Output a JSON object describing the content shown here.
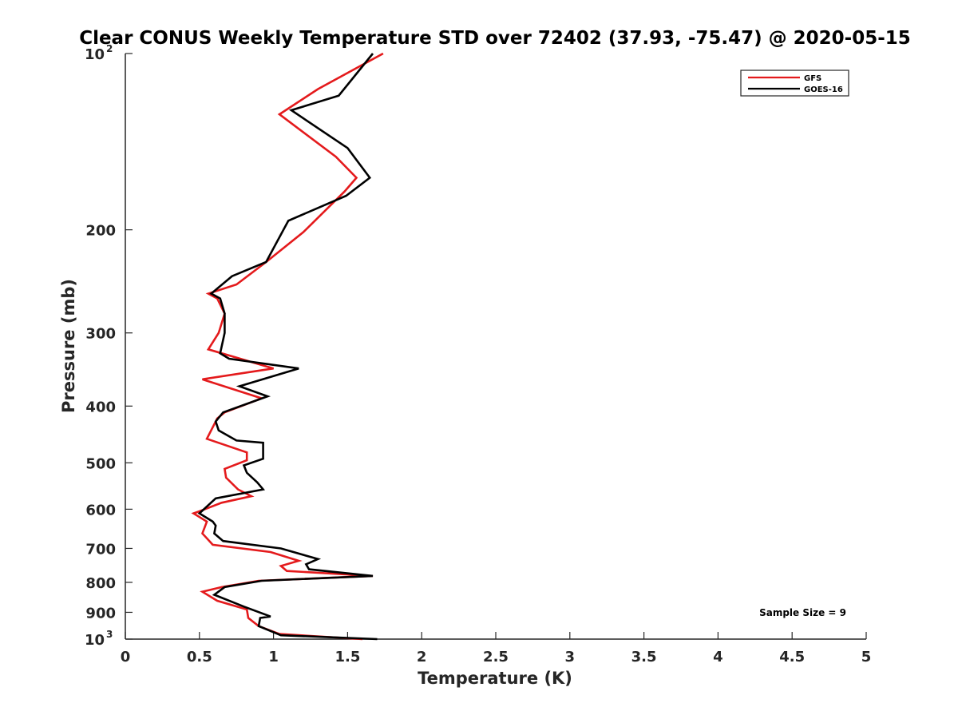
{
  "chart_data": {
    "type": "line",
    "title": "Clear CONUS Weekly Temperature STD over 72402 (37.93, -75.47) @ 2020-05-15",
    "xlabel": "Temperature (K)",
    "ylabel": "Pressure (mb)",
    "xlim": [
      0,
      5
    ],
    "ylim": [
      100,
      1000
    ],
    "yscale": "log",
    "y_reversed": true,
    "x_ticks": [
      {
        "value": 0,
        "label": "0"
      },
      {
        "value": 0.5,
        "label": "0.5"
      },
      {
        "value": 1,
        "label": "1"
      },
      {
        "value": 1.5,
        "label": "1.5"
      },
      {
        "value": 2,
        "label": "2"
      },
      {
        "value": 2.5,
        "label": "2.5"
      },
      {
        "value": 3,
        "label": "3"
      },
      {
        "value": 3.5,
        "label": "3.5"
      },
      {
        "value": 4,
        "label": "4"
      },
      {
        "value": 4.5,
        "label": "4.5"
      },
      {
        "value": 5,
        "label": "5"
      }
    ],
    "y_ticks": [
      {
        "value": 100,
        "base": "10",
        "exp": "2"
      },
      {
        "value": 200,
        "base": "200",
        "exp": ""
      },
      {
        "value": 300,
        "base": "300",
        "exp": ""
      },
      {
        "value": 400,
        "base": "400",
        "exp": ""
      },
      {
        "value": 500,
        "base": "500",
        "exp": ""
      },
      {
        "value": 600,
        "base": "600",
        "exp": ""
      },
      {
        "value": 700,
        "base": "700",
        "exp": ""
      },
      {
        "value": 800,
        "base": "800",
        "exp": ""
      },
      {
        "value": 900,
        "base": "900",
        "exp": ""
      },
      {
        "value": 1000,
        "base": "10",
        "exp": "3"
      }
    ],
    "grid": false,
    "legend_position": "top-right",
    "series": [
      {
        "name": "GFS",
        "color": "#e41a1c",
        "x": [
          1.74,
          1.3,
          1.04,
          1.42,
          1.56,
          1.48,
          1.2,
          0.95,
          0.75,
          0.56,
          0.62,
          0.67,
          0.63,
          0.56,
          1.0,
          0.52,
          0.92,
          0.67,
          0.62,
          0.55,
          0.82,
          0.82,
          0.67,
          0.68,
          0.76,
          0.85,
          0.65,
          0.5,
          0.46,
          0.55,
          0.52,
          0.59,
          0.98,
          1.17,
          1.05,
          1.09,
          1.67,
          0.9,
          0.65,
          0.52,
          0.62,
          0.82,
          0.83,
          0.9,
          1.04,
          1.6
        ],
        "y": [
          100,
          115,
          127,
          150,
          163,
          172,
          202,
          227,
          248,
          257,
          262,
          278,
          300,
          320,
          345,
          360,
          388,
          410,
          420,
          455,
          480,
          495,
          512,
          530,
          555,
          570,
          585,
          605,
          610,
          630,
          660,
          690,
          710,
          735,
          750,
          765,
          780,
          795,
          815,
          830,
          860,
          890,
          920,
          950,
          980,
          1000
        ]
      },
      {
        "name": "GOES-16",
        "color": "#000000",
        "x": [
          1.67,
          1.44,
          1.12,
          1.5,
          1.65,
          1.49,
          1.1,
          0.95,
          0.72,
          0.58,
          0.64,
          0.67,
          0.67,
          0.64,
          0.7,
          1.17,
          0.77,
          0.96,
          0.66,
          0.61,
          0.63,
          0.75,
          0.93,
          0.93,
          0.8,
          0.82,
          0.89,
          0.93,
          0.61,
          0.5,
          0.59,
          0.61,
          0.6,
          0.66,
          1.05,
          1.3,
          1.22,
          1.24,
          1.67,
          0.92,
          0.67,
          0.6,
          0.8,
          0.98,
          0.91,
          0.9,
          1.05,
          1.7
        ],
        "y": [
          100,
          118,
          125,
          145,
          163,
          175,
          193,
          227,
          240,
          257,
          262,
          278,
          300,
          325,
          332,
          345,
          370,
          385,
          410,
          425,
          440,
          458,
          462,
          492,
          505,
          520,
          540,
          555,
          575,
          610,
          630,
          640,
          660,
          680,
          700,
          730,
          745,
          760,
          780,
          795,
          815,
          840,
          880,
          915,
          920,
          950,
          985,
          1000
        ]
      }
    ],
    "annotations": [
      {
        "text": "Sample Size = 9",
        "position": "bottom-right"
      }
    ]
  }
}
